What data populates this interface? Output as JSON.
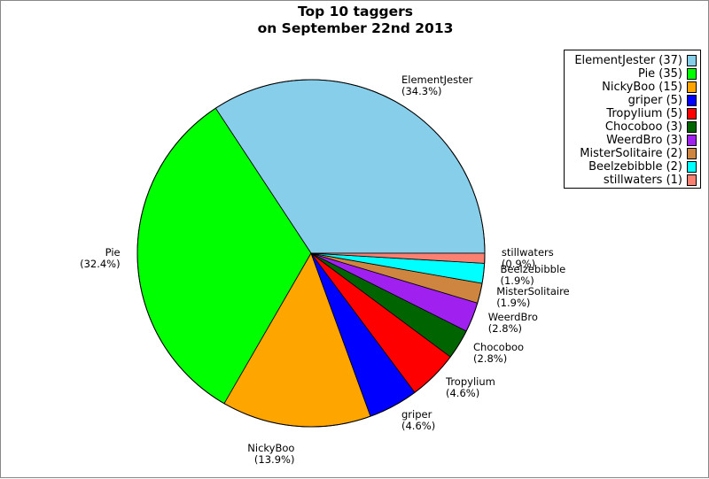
{
  "chart_data": {
    "type": "pie",
    "title": [
      "Top 10 taggers",
      "on September 22nd 2013"
    ],
    "slices": [
      {
        "name": "ElementJester",
        "value": 37,
        "percent": "(34.3%)",
        "legend": "ElementJester (37)",
        "color": "#87ceeb"
      },
      {
        "name": "Pie",
        "value": 35,
        "percent": "(32.4%)",
        "legend": "Pie (35)",
        "color": "#00ff00"
      },
      {
        "name": "NickyBoo",
        "value": 15,
        "percent": "(13.9%)",
        "legend": "NickyBoo (15)",
        "color": "#ffa500"
      },
      {
        "name": "griper",
        "value": 5,
        "percent": "(4.6%)",
        "legend": "griper (5)",
        "color": "#0000ff"
      },
      {
        "name": "Tropylium",
        "value": 5,
        "percent": "(4.6%)",
        "legend": "Tropylium (5)",
        "color": "#ff0000"
      },
      {
        "name": "Chocoboo",
        "value": 3,
        "percent": "(2.8%)",
        "legend": "Chocoboo (3)",
        "color": "#006400"
      },
      {
        "name": "WeerdBro",
        "value": 3,
        "percent": "(2.8%)",
        "legend": "WeerdBro (3)",
        "color": "#a020f0"
      },
      {
        "name": "MisterSolitaire",
        "value": 2,
        "percent": "(1.9%)",
        "legend": "MisterSolitaire (2)",
        "color": "#cd853f"
      },
      {
        "name": "Beelzebibble",
        "value": 2,
        "percent": "(1.9%)",
        "legend": "Beelzebibble (2)",
        "color": "#00ffff"
      },
      {
        "name": "stillwaters",
        "value": 1,
        "percent": "(0.9%)",
        "legend": "stillwaters (1)",
        "color": "#fa8072"
      }
    ],
    "legend_position": "top-right"
  }
}
